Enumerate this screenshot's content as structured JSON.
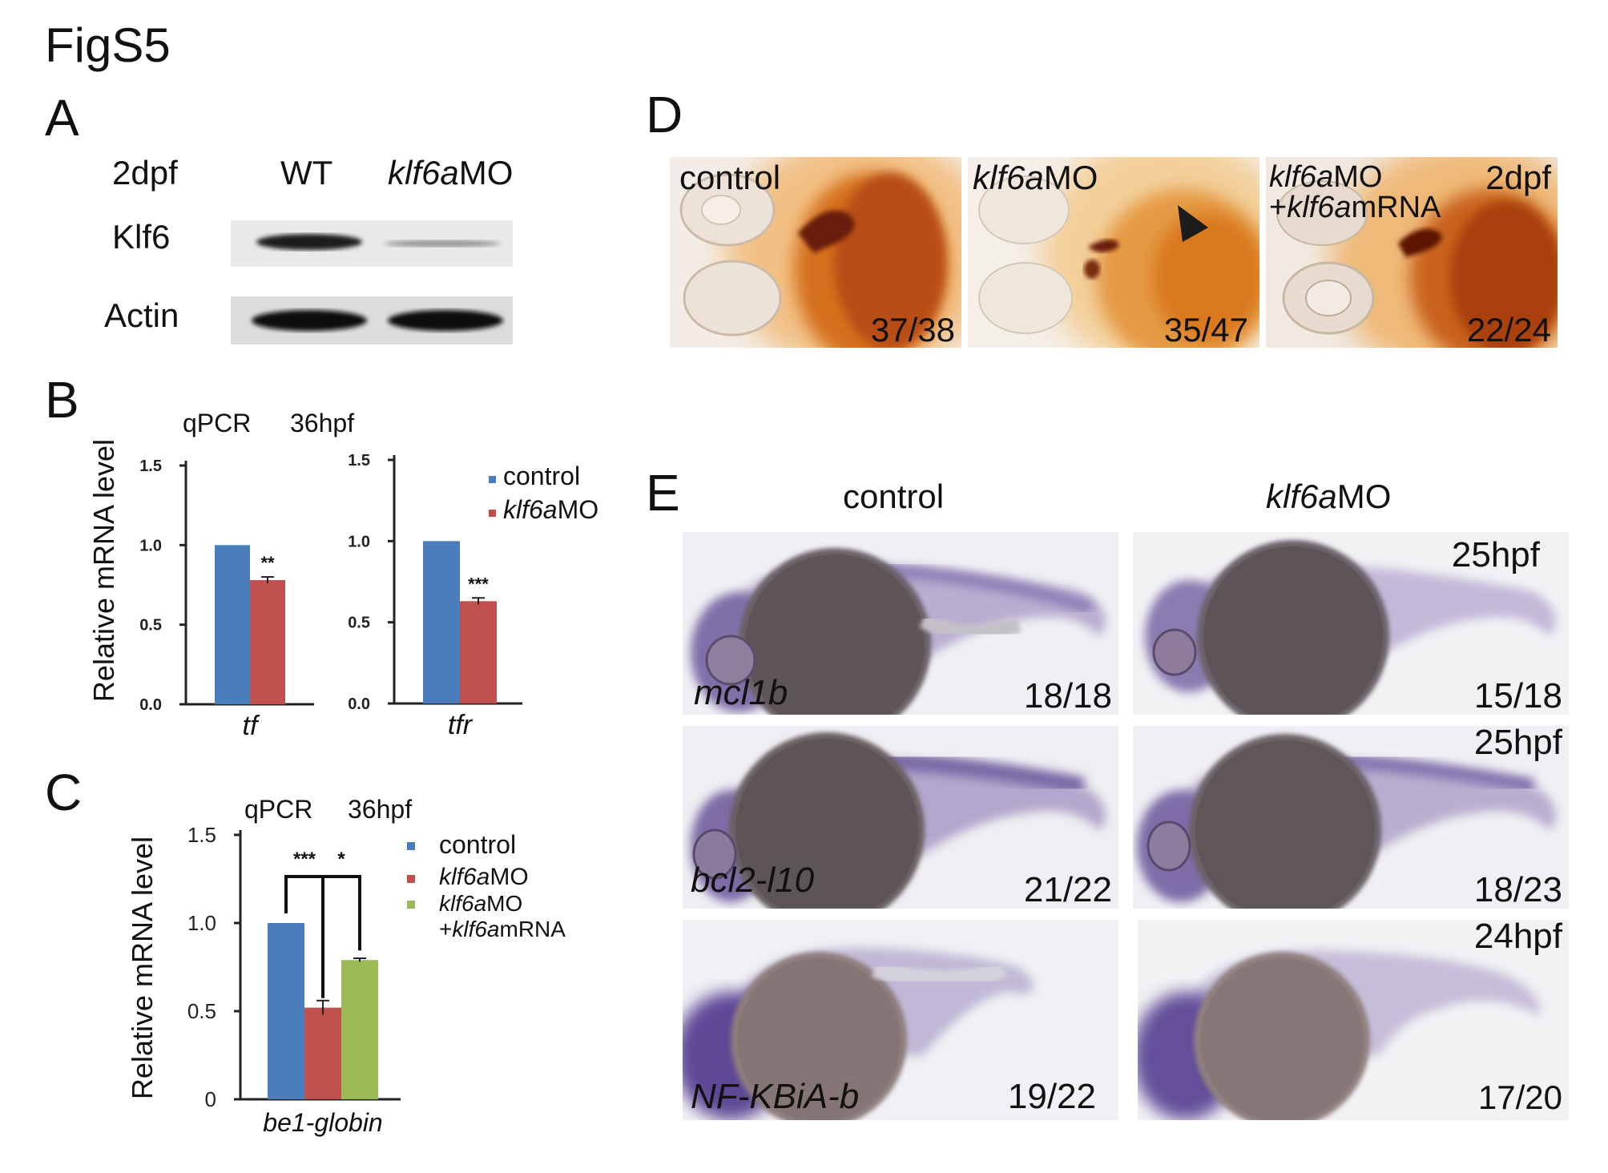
{
  "figure_title": "FigS5",
  "panels": {
    "A": {
      "label": "A",
      "stage": "2dpf",
      "columns": [
        "WT",
        "klf6aMO"
      ],
      "col_mo_italic": "klf6a",
      "col_mo_rest": "MO",
      "rows": [
        "Klf6",
        "Actin"
      ]
    },
    "B": {
      "label": "B",
      "method": "qPCR",
      "time": "36hpf",
      "ylabel": "Relative mRNA level",
      "legend": [
        {
          "name": "control",
          "color": "#4a7ebb"
        },
        {
          "italic": "klf6a",
          "rest": "MO",
          "color": "#c0504d"
        }
      ]
    },
    "C": {
      "label": "C",
      "method": "qPCR",
      "time": "36hpf",
      "ylabel": "Relative mRNA level",
      "legend": [
        {
          "name": "control",
          "color": "#4a7ebb"
        },
        {
          "italic": "klf6a",
          "rest": "MO",
          "color": "#c0504d"
        },
        {
          "italic": "klf6a",
          "rest": "MO",
          "line2_prefix": "+",
          "line2_italic": "klf6a",
          "line2_rest": "mRNA",
          "color": "#9bbb59"
        }
      ]
    },
    "D": {
      "label": "D",
      "images": [
        {
          "label": "control",
          "count": "37/38"
        },
        {
          "label_italic": "klf6a",
          "label_rest": "MO",
          "count": "35/47"
        },
        {
          "label_italic": "klf6a",
          "label_rest": "MO",
          "line2_prefix": "+",
          "line2_italic": "klf6a",
          "line2_rest": "mRNA",
          "stage": "2dpf",
          "count": "22/24"
        }
      ]
    },
    "E": {
      "label": "E",
      "col_control": "control",
      "col_mo_italic": "klf6a",
      "col_mo_rest": "MO",
      "rows": [
        {
          "gene": "mcl1b",
          "stage": "25hpf",
          "control_count": "18/18",
          "mo_count": "15/18"
        },
        {
          "gene": "bcl2-l10",
          "stage": "25hpf",
          "control_count": "21/22",
          "mo_count": "18/23"
        },
        {
          "gene": "NF-KBiA-b",
          "stage": "24hpf",
          "control_count": "19/22",
          "mo_count": "17/20"
        }
      ]
    }
  },
  "chart_data": [
    {
      "type": "bar",
      "panel": "B-tf",
      "categories": [
        "tf"
      ],
      "series": [
        {
          "name": "control",
          "values": [
            1.0
          ],
          "color": "#4a7ebb"
        },
        {
          "name": "klf6aMO",
          "values": [
            0.78
          ],
          "error": [
            0.02
          ],
          "color": "#c0504d"
        }
      ],
      "significance": [
        "**"
      ],
      "ylabel": "Relative mRNA level",
      "yticks": [
        "0.0",
        "0.5",
        "1.0",
        "1.5"
      ],
      "ylim": [
        0,
        1.5
      ]
    },
    {
      "type": "bar",
      "panel": "B-tfr",
      "categories": [
        "tfr"
      ],
      "series": [
        {
          "name": "control",
          "values": [
            1.0
          ],
          "color": "#4a7ebb"
        },
        {
          "name": "klf6aMO",
          "values": [
            0.63
          ],
          "error": [
            0.02
          ],
          "color": "#c0504d"
        }
      ],
      "significance": [
        "***"
      ],
      "yticks": [
        "0.0",
        "0.5",
        "1.0",
        "1.5"
      ],
      "ylim": [
        0,
        1.5
      ]
    },
    {
      "type": "bar",
      "panel": "C",
      "categories": [
        "be1-globin"
      ],
      "series": [
        {
          "name": "control",
          "values": [
            1.0
          ],
          "color": "#4a7ebb"
        },
        {
          "name": "klf6aMO",
          "values": [
            0.52
          ],
          "error": [
            0.04
          ],
          "color": "#c0504d"
        },
        {
          "name": "klf6aMO+klf6amRNA",
          "values": [
            0.79
          ],
          "error": [
            0.01
          ],
          "color": "#9bbb59"
        }
      ],
      "significance": [
        "***",
        "*"
      ],
      "ylabel": "Relative mRNA level",
      "yticks": [
        "0",
        "0.5",
        "1.0",
        "1.5"
      ],
      "ylim": [
        0,
        1.5
      ]
    }
  ]
}
